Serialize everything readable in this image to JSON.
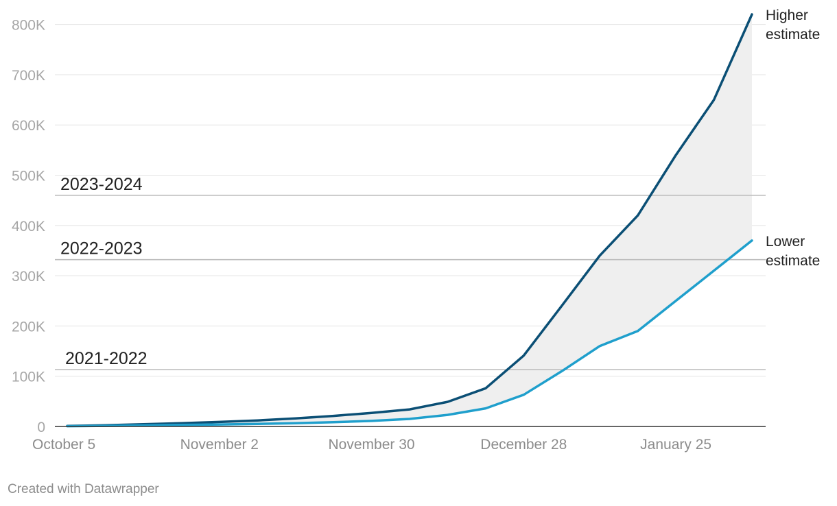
{
  "chart_data": {
    "type": "line",
    "title": "",
    "xlabel": "",
    "ylabel": "",
    "x_range_days": [
      0,
      126
    ],
    "ylim": [
      0,
      820000
    ],
    "y_ticks": [
      0,
      100000,
      200000,
      300000,
      400000,
      500000,
      600000,
      700000,
      800000
    ],
    "y_tick_labels": [
      "0",
      "100K",
      "200K",
      "300K",
      "400K",
      "500K",
      "600K",
      "700K",
      "800K"
    ],
    "x_ticks": [
      {
        "day": 0,
        "label": "October 5"
      },
      {
        "day": 28,
        "label": "November 2"
      },
      {
        "day": 56,
        "label": "November 30"
      },
      {
        "day": 84,
        "label": "December 28"
      },
      {
        "day": 112,
        "label": "January 25"
      }
    ],
    "grid": true,
    "x_days": [
      0,
      7,
      14,
      21,
      28,
      35,
      42,
      49,
      56,
      63,
      70,
      77,
      84,
      91,
      98,
      105,
      112,
      119,
      126
    ],
    "series": [
      {
        "name": "Higher estimate",
        "label_line1": "Higher",
        "label_line2": "estimate",
        "color": "#0b4f75",
        "values": [
          1000,
          2500,
          4500,
          6500,
          9000,
          12000,
          16000,
          21000,
          27000,
          34000,
          49000,
          76000,
          141000,
          240000,
          340000,
          420000,
          540000,
          650000,
          820000
        ]
      },
      {
        "name": "Lower estimate",
        "label_line1": "Lower",
        "label_line2": "estimate",
        "color": "#1f9fcc",
        "values": [
          500,
          1200,
          2000,
          3000,
          4000,
          5000,
          6500,
          8500,
          11000,
          15000,
          23000,
          36000,
          63000,
          110000,
          160000,
          190000,
          250000,
          310000,
          370000
        ]
      }
    ],
    "band_fill": "#efefef",
    "reference_lines": [
      {
        "label": "2023-2024",
        "value": 460000,
        "color": "#bdbdbd"
      },
      {
        "label": "2022-2023",
        "value": 332000,
        "color": "#bdbdbd"
      },
      {
        "label": "2021-2022",
        "value": 113000,
        "color": "#bdbdbd"
      }
    ]
  },
  "footer": {
    "credit": "Created with Datawrapper"
  }
}
